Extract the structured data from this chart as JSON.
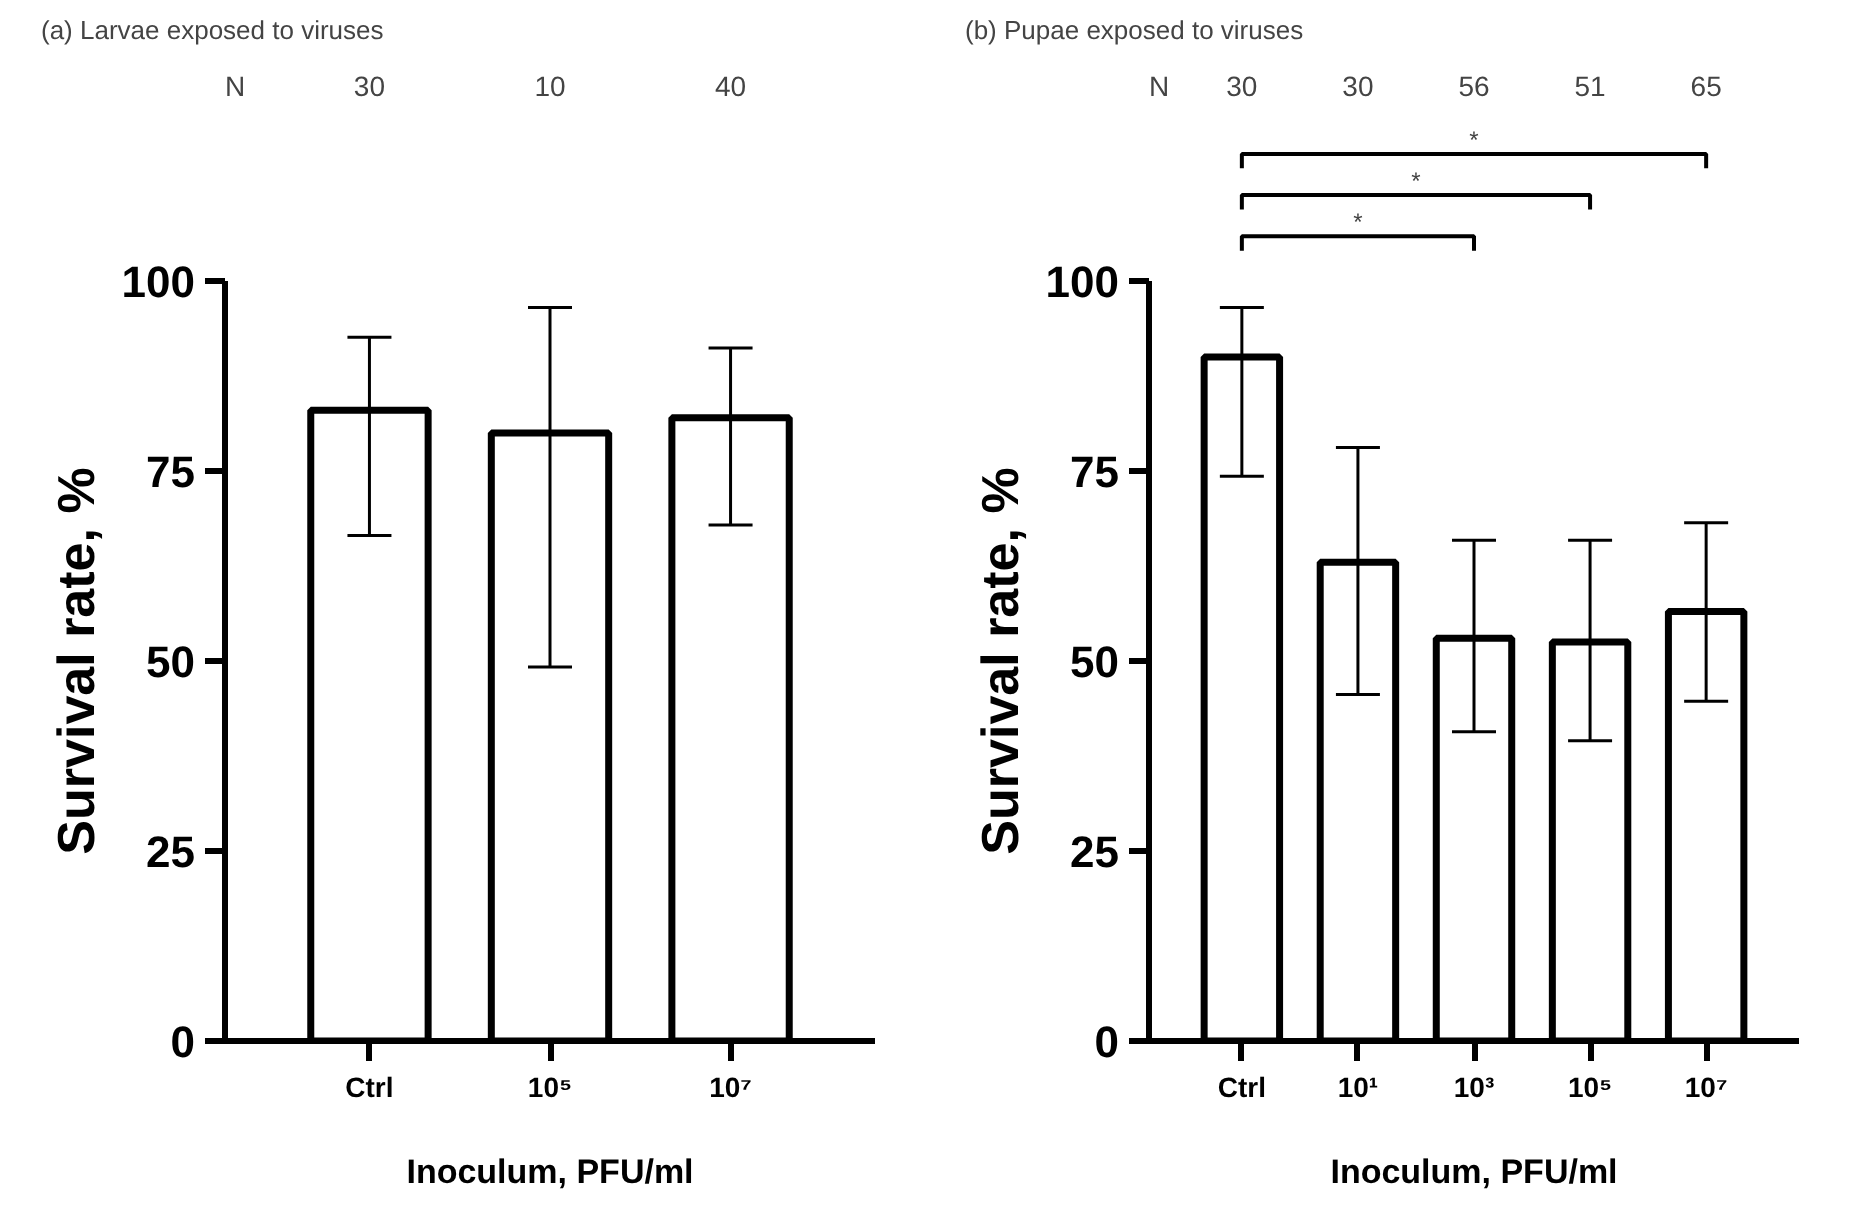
{
  "chart_data": [
    {
      "type": "bar",
      "title": "(a) Larvae exposed to viruses",
      "ylabel": "Survival rate, %",
      "xlabel": "Inoculum, PFU/ml",
      "categories": [
        "Ctrl",
        "10⁵",
        "10⁷"
      ],
      "values": [
        83,
        80,
        82
      ],
      "errors": [
        [
          66.5,
          92.6
        ],
        [
          49.2,
          96.5
        ],
        [
          67.9,
          91.2
        ]
      ],
      "color": "#ffffff",
      "ylim": [
        0,
        100
      ],
      "yticks": [
        0,
        25,
        50,
        75,
        100
      ],
      "grid": false,
      "annotations": [
        "N",
        "30",
        "10",
        "40"
      ]
    },
    {
      "type": "bar",
      "title": "(b) Pupae exposed to viruses",
      "ylabel": "Survival rate, %",
      "xlabel": "Inoculum, PFU/ml",
      "categories": [
        "Ctrl",
        "10¹",
        "10³",
        "10⁵",
        "10⁷"
      ],
      "values": [
        90,
        63,
        53,
        52.5,
        56.5
      ],
      "errors": [
        [
          74.3,
          96.5
        ],
        [
          45.6,
          78.1
        ],
        [
          40.7,
          65.9
        ],
        [
          39.5,
          65.9
        ],
        [
          44.7,
          68.2
        ]
      ],
      "color": "#ffffff",
      "ylim": [
        0,
        100
      ],
      "yticks": [
        0,
        25,
        50,
        75,
        100
      ],
      "grid": false,
      "annotations": [
        "N",
        "30",
        "30",
        "56",
        "51",
        "65",
        "*",
        "*",
        "*"
      ]
    }
  ]
}
